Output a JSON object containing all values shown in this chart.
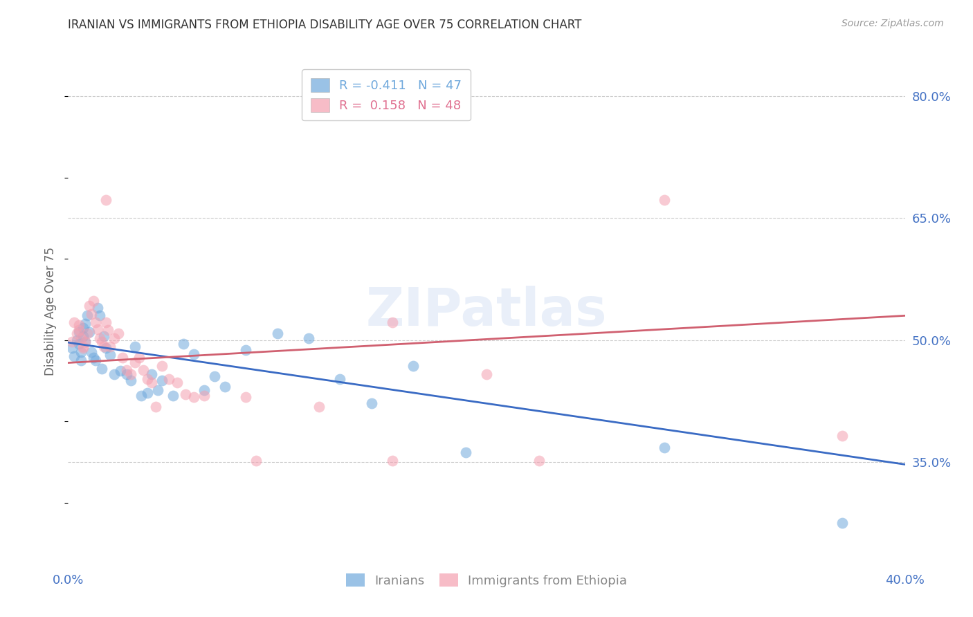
{
  "title": "IRANIAN VS IMMIGRANTS FROM ETHIOPIA DISABILITY AGE OVER 75 CORRELATION CHART",
  "source": "Source: ZipAtlas.com",
  "ylabel": "Disability Age Over 75",
  "xlim": [
    0.0,
    0.4
  ],
  "ylim": [
    0.22,
    0.85
  ],
  "yticks": [
    0.35,
    0.5,
    0.65,
    0.8
  ],
  "ytick_labels": [
    "35.0%",
    "50.0%",
    "65.0%",
    "80.0%"
  ],
  "xticks": [
    0.0,
    0.1,
    0.2,
    0.3,
    0.4
  ],
  "xtick_labels": [
    "0.0%",
    "",
    "",
    "",
    "40.0%"
  ],
  "legend_entries": [
    {
      "label": "R = -0.411   N = 47",
      "color": "#6fa8dc"
    },
    {
      "label": "R =  0.158   N = 48",
      "color": "#e07090"
    }
  ],
  "watermark": "ZIPatlas",
  "iranians_color": "#6fa8dc",
  "ethiopia_color": "#f4a0b0",
  "line_iranians_color": "#3a6bc4",
  "line_ethiopia_color": "#d06070",
  "iranians_scatter": [
    [
      0.002,
      0.49
    ],
    [
      0.003,
      0.48
    ],
    [
      0.004,
      0.5
    ],
    [
      0.005,
      0.51
    ],
    [
      0.005,
      0.495
    ],
    [
      0.006,
      0.485
    ],
    [
      0.006,
      0.475
    ],
    [
      0.007,
      0.505
    ],
    [
      0.007,
      0.515
    ],
    [
      0.008,
      0.498
    ],
    [
      0.008,
      0.52
    ],
    [
      0.009,
      0.53
    ],
    [
      0.01,
      0.51
    ],
    [
      0.011,
      0.485
    ],
    [
      0.012,
      0.478
    ],
    [
      0.013,
      0.475
    ],
    [
      0.014,
      0.54
    ],
    [
      0.015,
      0.53
    ],
    [
      0.016,
      0.465
    ],
    [
      0.017,
      0.505
    ],
    [
      0.018,
      0.49
    ],
    [
      0.02,
      0.482
    ],
    [
      0.022,
      0.458
    ],
    [
      0.025,
      0.462
    ],
    [
      0.028,
      0.458
    ],
    [
      0.03,
      0.45
    ],
    [
      0.032,
      0.492
    ],
    [
      0.035,
      0.432
    ],
    [
      0.038,
      0.435
    ],
    [
      0.04,
      0.458
    ],
    [
      0.043,
      0.438
    ],
    [
      0.045,
      0.45
    ],
    [
      0.05,
      0.432
    ],
    [
      0.055,
      0.495
    ],
    [
      0.06,
      0.483
    ],
    [
      0.065,
      0.438
    ],
    [
      0.07,
      0.455
    ],
    [
      0.075,
      0.443
    ],
    [
      0.085,
      0.488
    ],
    [
      0.1,
      0.508
    ],
    [
      0.115,
      0.502
    ],
    [
      0.13,
      0.452
    ],
    [
      0.145,
      0.422
    ],
    [
      0.165,
      0.468
    ],
    [
      0.19,
      0.362
    ],
    [
      0.285,
      0.368
    ],
    [
      0.37,
      0.275
    ]
  ],
  "ethiopia_scatter": [
    [
      0.002,
      0.498
    ],
    [
      0.003,
      0.522
    ],
    [
      0.004,
      0.508
    ],
    [
      0.005,
      0.518
    ],
    [
      0.005,
      0.512
    ],
    [
      0.006,
      0.502
    ],
    [
      0.007,
      0.492
    ],
    [
      0.007,
      0.49
    ],
    [
      0.008,
      0.498
    ],
    [
      0.009,
      0.508
    ],
    [
      0.01,
      0.542
    ],
    [
      0.011,
      0.532
    ],
    [
      0.012,
      0.548
    ],
    [
      0.013,
      0.522
    ],
    [
      0.014,
      0.513
    ],
    [
      0.015,
      0.502
    ],
    [
      0.016,
      0.498
    ],
    [
      0.017,
      0.492
    ],
    [
      0.018,
      0.522
    ],
    [
      0.019,
      0.512
    ],
    [
      0.02,
      0.492
    ],
    [
      0.022,
      0.502
    ],
    [
      0.024,
      0.508
    ],
    [
      0.026,
      0.478
    ],
    [
      0.028,
      0.463
    ],
    [
      0.03,
      0.458
    ],
    [
      0.032,
      0.472
    ],
    [
      0.034,
      0.478
    ],
    [
      0.036,
      0.463
    ],
    [
      0.038,
      0.452
    ],
    [
      0.04,
      0.448
    ],
    [
      0.042,
      0.418
    ],
    [
      0.045,
      0.468
    ],
    [
      0.048,
      0.452
    ],
    [
      0.052,
      0.448
    ],
    [
      0.056,
      0.433
    ],
    [
      0.018,
      0.672
    ],
    [
      0.06,
      0.43
    ],
    [
      0.065,
      0.432
    ],
    [
      0.09,
      0.352
    ],
    [
      0.12,
      0.418
    ],
    [
      0.155,
      0.352
    ],
    [
      0.155,
      0.522
    ],
    [
      0.225,
      0.352
    ],
    [
      0.2,
      0.458
    ],
    [
      0.285,
      0.672
    ],
    [
      0.37,
      0.382
    ],
    [
      0.085,
      0.43
    ]
  ],
  "iran_line_x0": 0.0,
  "iran_line_y0": 0.497,
  "iran_line_x1": 0.4,
  "iran_line_y1": 0.347,
  "eth_line_x0": 0.0,
  "eth_line_y0": 0.472,
  "eth_line_x1": 0.4,
  "eth_line_y1": 0.53
}
